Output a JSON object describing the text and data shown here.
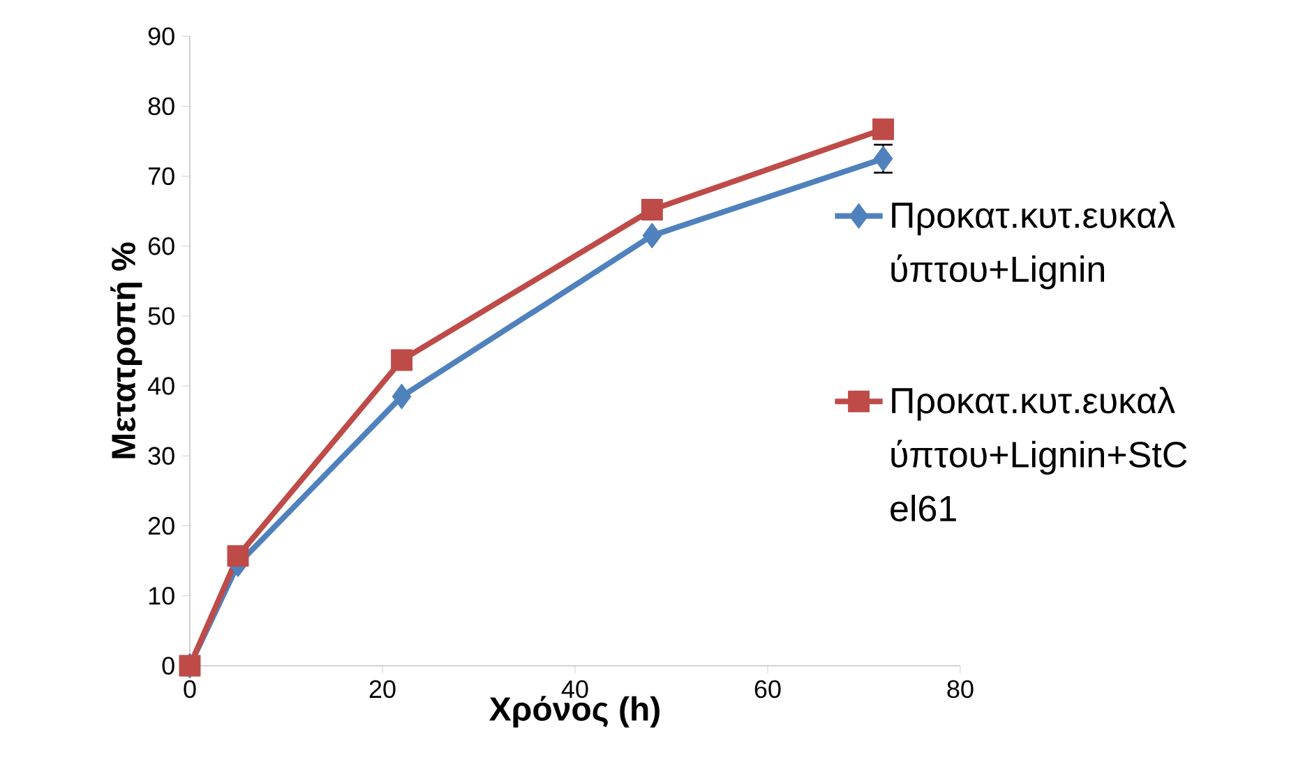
{
  "chart_data": {
    "type": "line",
    "xlabel": "Χρόνος (h)",
    "ylabel": "Μετατροπή  %",
    "x": [
      0,
      5,
      22,
      48,
      72
    ],
    "series": [
      {
        "name": "Προκατ.κυτ.ευκαλύπτου+Lignin",
        "color": "#4f81bd",
        "marker": "diamond",
        "values": [
          0,
          14.5,
          38.5,
          61.5,
          72.5
        ],
        "errors": [
          null,
          null,
          null,
          null,
          2
        ]
      },
      {
        "name": "Προκατ.κυτ.ευκαλύπτου+Lignin+StCel61",
        "color": "#be4b48",
        "marker": "square",
        "values": [
          0,
          15.7,
          43.7,
          65.2,
          76.7
        ]
      }
    ],
    "xlim": [
      0,
      80
    ],
    "xticks": [
      0,
      20,
      40,
      60,
      80
    ],
    "ylim": [
      0,
      90
    ],
    "yticks": [
      0,
      10,
      20,
      30,
      40,
      50,
      60,
      70,
      80,
      90
    ],
    "legend": "right",
    "grid": false
  }
}
